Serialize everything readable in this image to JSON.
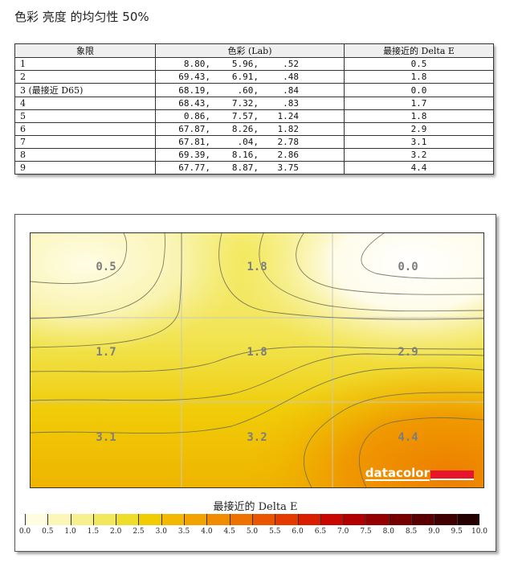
{
  "page_title": "色彩 亮度 的均匀性 50%",
  "table": {
    "headers": [
      "象限",
      "色彩 (Lab)",
      "最接近的 Delta E"
    ],
    "rows": [
      {
        "quadrant": "1",
        "L": "8.80,",
        "a": "5.96,",
        "b": ".52",
        "delta_e": "0.5"
      },
      {
        "quadrant": "2",
        "L": "69.43,",
        "a": "6.91,",
        "b": ".48",
        "delta_e": "1.8"
      },
      {
        "quadrant": "3 (最接近 D65)",
        "L": "68.19,",
        "a": ".60,",
        "b": ".84",
        "delta_e": "0.0"
      },
      {
        "quadrant": "4",
        "L": "68.43,",
        "a": "7.32,",
        "b": ".83",
        "delta_e": "1.7"
      },
      {
        "quadrant": "5",
        "L": "0.86,",
        "a": "7.57,",
        "b": "1.24",
        "delta_e": "1.8"
      },
      {
        "quadrant": "6",
        "L": "67.87,",
        "a": "8.26,",
        "b": "1.82",
        "delta_e": "2.9"
      },
      {
        "quadrant": "7",
        "L": "67.81,",
        "a": ".04,",
        "b": "2.78",
        "delta_e": "3.1"
      },
      {
        "quadrant": "8",
        "L": "69.39,",
        "a": "8.16,",
        "b": "2.86",
        "delta_e": "3.2"
      },
      {
        "quadrant": "9",
        "L": "67.77,",
        "a": "8.87,",
        "b": "3.75",
        "delta_e": "4.4"
      }
    ]
  },
  "chart": {
    "logo_text": "datacolor",
    "legend_title": "最接近的 Delta E",
    "legend_ticks": [
      "0.0",
      "0.5",
      "1.0",
      "1.5",
      "2.0",
      "2.5",
      "3.0",
      "3.5",
      "4.0",
      "4.5",
      "5.0",
      "5.5",
      "6.0",
      "6.5",
      "7.0",
      "7.5",
      "8.0",
      "8.5",
      "9.0",
      "9.5",
      "10.0"
    ],
    "legend_colors": [
      "#fffde0",
      "#fbf7b8",
      "#f6f08e",
      "#f1e85e",
      "#eedd2a",
      "#f0cc00",
      "#f2b900",
      "#f2a300",
      "#f08c00",
      "#ee7200",
      "#ea5500",
      "#e43a00",
      "#d91e00",
      "#c80800",
      "#b00000",
      "#940000",
      "#760000",
      "#5a0000",
      "#400000",
      "#240000"
    ]
  },
  "chart_data": {
    "type": "heatmap",
    "title": "色彩 亮度 的均匀性 50%",
    "xlabel": "",
    "ylabel": "",
    "colorbar_label": "最接近的 Delta E",
    "colorbar_range": [
      0.0,
      10.0
    ],
    "colorbar_ticks": [
      0.0,
      0.5,
      1.0,
      1.5,
      2.0,
      2.5,
      3.0,
      3.5,
      4.0,
      4.5,
      5.0,
      5.5,
      6.0,
      6.5,
      7.0,
      7.5,
      8.0,
      8.5,
      9.0,
      9.5,
      10.0
    ],
    "grid": [
      [
        0.5,
        1.8,
        0.0
      ],
      [
        1.7,
        1.8,
        2.9
      ],
      [
        3.1,
        3.2,
        4.4
      ]
    ],
    "quadrants": [
      {
        "id": 1,
        "lab": [
          8.8,
          5.96,
          0.52
        ],
        "delta_e": 0.5
      },
      {
        "id": 2,
        "lab": [
          69.43,
          6.91,
          0.48
        ],
        "delta_e": 1.8
      },
      {
        "id": 3,
        "lab": [
          68.19,
          0.6,
          0.84
        ],
        "delta_e": 0.0,
        "note": "最接近 D65"
      },
      {
        "id": 4,
        "lab": [
          68.43,
          7.32,
          0.83
        ],
        "delta_e": 1.7
      },
      {
        "id": 5,
        "lab": [
          0.86,
          7.57,
          1.24
        ],
        "delta_e": 1.8
      },
      {
        "id": 6,
        "lab": [
          67.87,
          8.26,
          1.82
        ],
        "delta_e": 2.9
      },
      {
        "id": 7,
        "lab": [
          67.81,
          0.04,
          2.78
        ],
        "delta_e": 3.1
      },
      {
        "id": 8,
        "lab": [
          69.39,
          8.16,
          2.86
        ],
        "delta_e": 3.2
      },
      {
        "id": 9,
        "lab": [
          67.77,
          8.87,
          3.75
        ],
        "delta_e": 4.4
      }
    ]
  }
}
